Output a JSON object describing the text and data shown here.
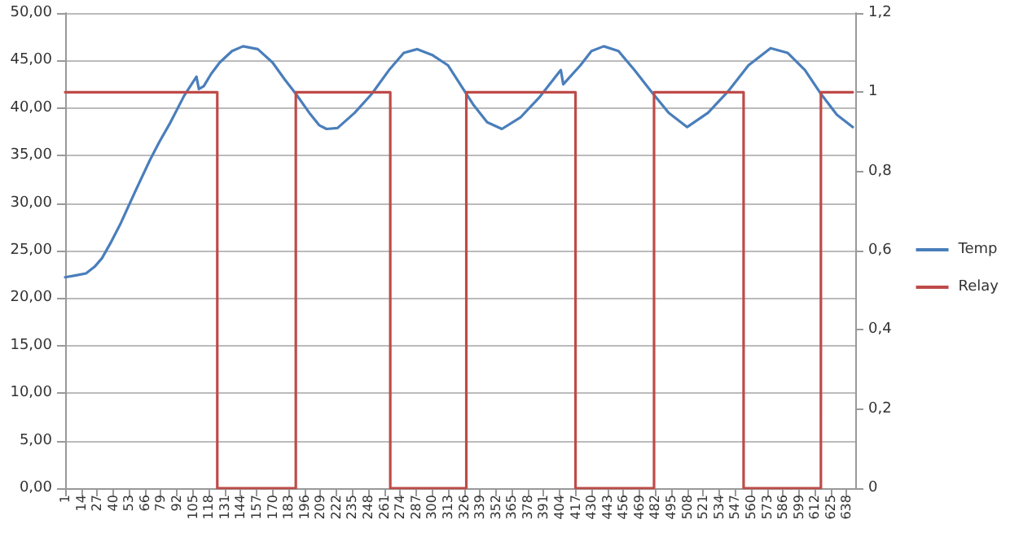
{
  "chart_data": {
    "type": "line",
    "xlim": [
      1,
      645
    ],
    "xticks": [
      1,
      14,
      27,
      40,
      53,
      66,
      79,
      92,
      105,
      118,
      131,
      144,
      157,
      170,
      183,
      196,
      209,
      222,
      235,
      248,
      261,
      274,
      287,
      300,
      313,
      326,
      339,
      352,
      365,
      378,
      391,
      404,
      417,
      430,
      443,
      456,
      469,
      482,
      495,
      508,
      521,
      534,
      547,
      560,
      573,
      586,
      599,
      612,
      625,
      638
    ],
    "ylim": [
      0,
      50
    ],
    "yticks": [
      {
        "value": 0,
        "label": "0,00"
      },
      {
        "value": 5,
        "label": "5,00"
      },
      {
        "value": 10,
        "label": "10,00"
      },
      {
        "value": 15,
        "label": "15,00"
      },
      {
        "value": 20,
        "label": "20,00"
      },
      {
        "value": 25,
        "label": "25,00"
      },
      {
        "value": 30,
        "label": "30,00"
      },
      {
        "value": 35,
        "label": "35,00"
      },
      {
        "value": 40,
        "label": "40,00"
      },
      {
        "value": 45,
        "label": "45,00"
      },
      {
        "value": 50,
        "label": "50,00"
      }
    ],
    "y2lim": [
      0,
      1.2
    ],
    "y2ticks": [
      0,
      {
        "value": 0.2,
        "label": "0,2"
      },
      {
        "value": 0.4,
        "label": "0,4"
      },
      {
        "value": 0.6,
        "label": "0,6"
      },
      {
        "value": 0.8,
        "label": "0,8"
      },
      1,
      {
        "value": 1.2,
        "label": "1,2"
      }
    ],
    "grid": "y",
    "legend": "right",
    "marker": "none",
    "line_style": "solid",
    "series": [
      {
        "name": "Temp",
        "color": "#4a7ebb",
        "x": [
          1,
          10,
          18,
          25,
          31,
          38,
          46,
          58,
          70,
          78,
          86,
          98,
          108,
          110,
          114,
          120,
          127,
          137,
          146,
          158,
          170,
          180,
          189,
          200,
          208,
          214,
          223,
          237,
          251,
          265,
          277,
          288,
          300,
          313,
          328,
          334,
          345,
          357,
          372,
          388,
          405,
          407,
          421,
          430,
          440,
          452,
          465,
          479,
          493,
          508,
          525,
          541,
          558,
          576,
          590,
          604,
          617,
          630,
          643
        ],
        "values": [
          22.2,
          22.4,
          22.6,
          23.3,
          24.2,
          25.8,
          27.8,
          31.2,
          34.5,
          36.5,
          38.3,
          41.3,
          43.3,
          42,
          42.3,
          43.6,
          44.8,
          46,
          46.5,
          46.2,
          44.8,
          43,
          41.5,
          39.5,
          38.2,
          37.8,
          37.9,
          39.5,
          41.5,
          44,
          45.8,
          46.2,
          45.6,
          44.5,
          41.5,
          40.3,
          38.5,
          37.8,
          39,
          41.2,
          44,
          42.5,
          44.5,
          46,
          46.5,
          46,
          44,
          41.7,
          39.5,
          38,
          39.5,
          41.7,
          44.5,
          46.3,
          45.8,
          44,
          41.5,
          39.3,
          38
        ]
      },
      {
        "name": "Relay",
        "color": "#be4b48",
        "type": "step",
        "axis": "y2",
        "x": [
          1,
          125,
          189,
          266,
          328,
          417,
          481,
          554,
          617,
          643
        ],
        "values": [
          1,
          0,
          1,
          0,
          1,
          0,
          1,
          0,
          1,
          1
        ]
      }
    ]
  }
}
